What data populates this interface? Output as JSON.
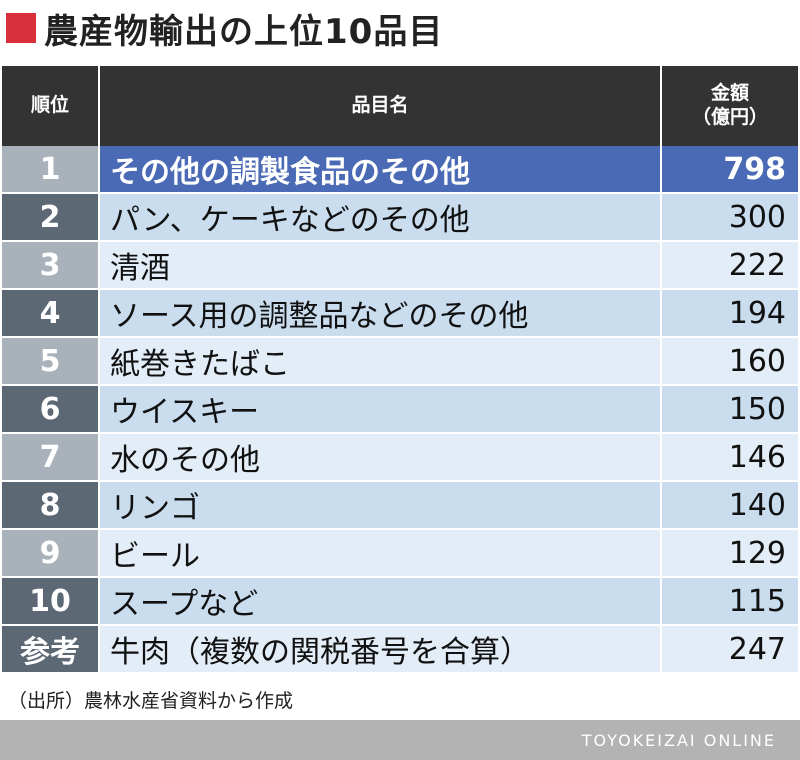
{
  "title": "農産物輸出の上位10品目",
  "colors": {
    "title_square": "#d9313b",
    "header_bg": "#333333",
    "rank_odd": "#a9b2ba",
    "rank_even": "#5c6975",
    "row_odd": "#e3edf7",
    "row_even": "#c9ddef",
    "highlight_row": "#4a6ab5",
    "reference_rank": "#5c6975",
    "reference_row": "#e3edf7"
  },
  "chart_data": {
    "type": "table",
    "columns": [
      "順位",
      "品目名",
      "金額\n（億円）"
    ],
    "rows": [
      {
        "rank": "1",
        "name": "その他の調製食品のその他",
        "amount": "798",
        "highlight": true
      },
      {
        "rank": "2",
        "name": "パン、ケーキなどのその他",
        "amount": "300"
      },
      {
        "rank": "3",
        "name": "清酒",
        "amount": "222"
      },
      {
        "rank": "4",
        "name": "ソース用の調整品などのその他",
        "amount": "194"
      },
      {
        "rank": "5",
        "name": "紙巻きたばこ",
        "amount": "160"
      },
      {
        "rank": "6",
        "name": "ウイスキー",
        "amount": "150"
      },
      {
        "rank": "7",
        "name": "水のその他",
        "amount": "146"
      },
      {
        "rank": "8",
        "name": "リンゴ",
        "amount": "140"
      },
      {
        "rank": "9",
        "name": "ビール",
        "amount": "129"
      },
      {
        "rank": "10",
        "name": "スープなど",
        "amount": "115"
      },
      {
        "rank": "参考",
        "name": "牛肉（複数の関税番号を合算）",
        "amount": "247",
        "reference": true
      }
    ]
  },
  "source": "（出所）農林水産省資料から作成",
  "footer": "TOYOKEIZAI ONLINE"
}
